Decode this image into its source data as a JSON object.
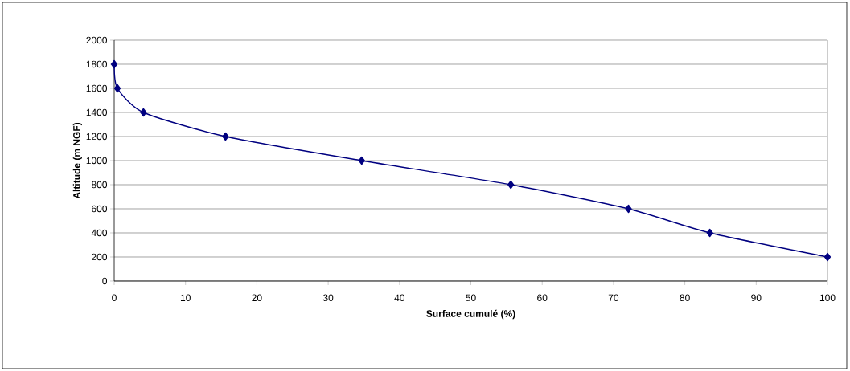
{
  "chart_data": {
    "type": "line",
    "xlabel": "Surface cumulé (%)",
    "ylabel": "Altitude (m NGF)",
    "x": [
      0,
      0.45,
      4.1,
      15.6,
      34.7,
      55.6,
      72.1,
      83.5,
      100
    ],
    "series": [
      {
        "color": "#000080",
        "values": [
          1800,
          1600,
          1400,
          1200,
          1000,
          800,
          600,
          400,
          200
        ]
      }
    ],
    "xlim": [
      0,
      100
    ],
    "ylim": [
      0,
      2000
    ],
    "xticks": [
      0,
      10,
      20,
      30,
      40,
      50,
      60,
      70,
      80,
      90,
      100
    ],
    "yticks": [
      0,
      200,
      400,
      600,
      800,
      1000,
      1200,
      1400,
      1600,
      1800,
      2000
    ],
    "grid": "y",
    "marker": "diamond",
    "line_style": "solid"
  }
}
